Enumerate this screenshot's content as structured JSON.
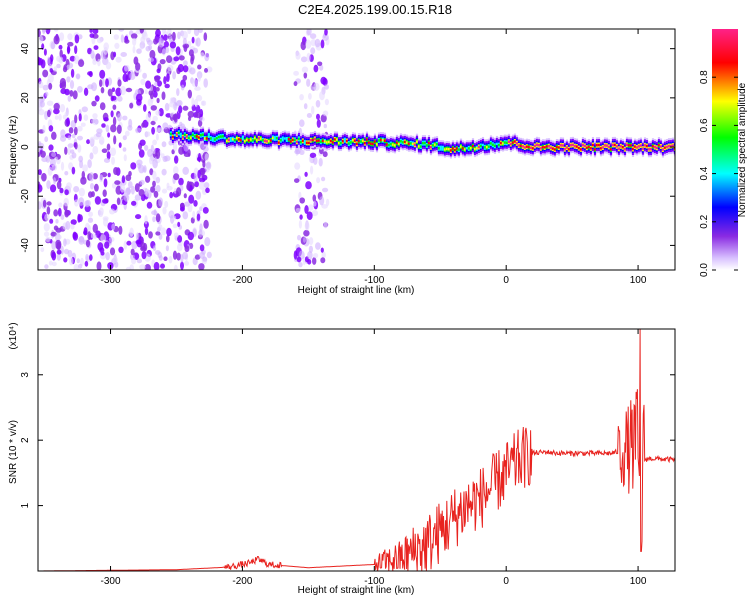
{
  "title": "C2E4.2025.199.00.15.R18",
  "chart_data": [
    {
      "type": "heatmap",
      "xlabel": "Height of straight line (km)",
      "ylabel": "Frequency (Hz)",
      "xlim": [
        -355,
        128
      ],
      "ylim": [
        -50,
        48
      ],
      "xticks": [
        -300,
        -200,
        -100,
        0,
        100
      ],
      "yticks": [
        -40,
        -20,
        0,
        20,
        40
      ],
      "colorbar": {
        "label": "Normalized spectral amplitude",
        "range": [
          0,
          1
        ],
        "ticks": [
          0.0,
          0.2,
          0.4,
          0.6,
          0.8
        ],
        "tick_labels": [
          "0.0",
          "0.2",
          "0.4",
          "0.6",
          "0.8"
        ],
        "colormap": [
          "#ffffff",
          "#d0b0ff",
          "#7f00ff",
          "#0000ff",
          "#00ffff",
          "#00ff00",
          "#ffff00",
          "#ff0000",
          "#ff0088"
        ]
      },
      "features": [
        {
          "name": "noise",
          "x_range": [
            -355,
            -225
          ],
          "amplitude": 0.15
        },
        {
          "name": "noise-band",
          "x_range": [
            -160,
            -135
          ],
          "amplitude": 0.08
        },
        {
          "name": "signal-line",
          "x_range": [
            -255,
            128
          ],
          "center_hz": [
            [
              -255,
              5
            ],
            [
              -200,
              3
            ],
            [
              -100,
              2
            ],
            [
              -60,
              1
            ],
            [
              -40,
              -1
            ],
            [
              0,
              2
            ],
            [
              20,
              0
            ],
            [
              128,
              0
            ]
          ],
          "peak_amplitude": 0.95
        }
      ]
    },
    {
      "type": "line",
      "xlabel": "Height of straight line (km)",
      "ylabel": "SNR (10 * v/v)",
      "y_multiplier": "(x10⁴)",
      "xlim": [
        -355,
        128
      ],
      "ylim": [
        0,
        3.7
      ],
      "xticks": [
        -300,
        -200,
        -100,
        0,
        100
      ],
      "yticks": [
        1,
        2,
        3
      ],
      "color": "#e8231f",
      "x": [
        -355,
        -250,
        -210,
        -195,
        -188,
        -180,
        -150,
        -100,
        -80,
        -60,
        -50,
        -40,
        -30,
        -20,
        -10,
        0,
        10,
        20,
        30,
        40,
        60,
        80,
        90,
        95,
        100,
        102,
        104,
        110,
        128
      ],
      "y": [
        0.0,
        0.02,
        0.06,
        0.12,
        0.18,
        0.1,
        0.05,
        0.1,
        0.2,
        0.4,
        0.6,
        0.8,
        1.0,
        1.1,
        1.3,
        1.5,
        1.7,
        1.8,
        1.82,
        1.8,
        1.8,
        1.8,
        1.85,
        1.9,
        2.0,
        0.3,
        1.7,
        1.72,
        1.7
      ]
    }
  ]
}
